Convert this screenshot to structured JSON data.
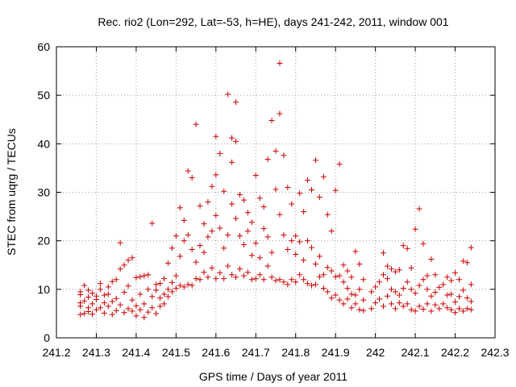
{
  "chart_data": {
    "type": "scatter",
    "title": "Rec. rio2 (Lon=292, Lat=-53, h=HE), days 241-242, 2011, window 001",
    "xlabel": "GPS time / Days of year 2011",
    "ylabel": "STEC from uqrg / TECUs",
    "xlim": [
      241.2,
      242.3
    ],
    "ylim": [
      0,
      60
    ],
    "x_ticks": [
      241.2,
      241.3,
      241.4,
      241.5,
      241.6,
      241.7,
      241.8,
      241.9,
      242.0,
      242.1,
      242.2,
      242.3
    ],
    "x_tick_labels": [
      "241.2",
      "241.3",
      "241.4",
      "241.5",
      "241.6",
      "241.7",
      "241.8",
      "241.9",
      "242",
      "242.1",
      "242.2",
      "242.3"
    ],
    "y_ticks": [
      0,
      10,
      20,
      30,
      40,
      50,
      60
    ],
    "y_tick_labels": [
      "0",
      "10",
      "20",
      "30",
      "40",
      "50",
      "60"
    ],
    "grid": true,
    "marker": "+",
    "color": "#cc0000",
    "series": [
      {
        "points": [
          [
            241.26,
            4.8
          ],
          [
            241.26,
            6.5
          ],
          [
            241.26,
            7.2
          ],
          [
            241.26,
            8.9
          ],
          [
            241.26,
            9.5
          ],
          [
            241.27,
            5.0
          ],
          [
            241.27,
            7.6
          ],
          [
            241.27,
            10.8
          ],
          [
            241.28,
            5.4
          ],
          [
            241.28,
            6.2
          ],
          [
            241.28,
            8.4
          ],
          [
            241.28,
            9.8
          ],
          [
            241.29,
            4.9
          ],
          [
            241.29,
            7.0
          ],
          [
            241.29,
            9.2
          ],
          [
            241.3,
            5.8
          ],
          [
            241.3,
            7.9
          ],
          [
            241.3,
            8.6
          ],
          [
            241.31,
            6.2
          ],
          [
            241.31,
            10.0
          ],
          [
            241.31,
            11.2
          ],
          [
            241.32,
            5.1
          ],
          [
            241.32,
            7.2
          ],
          [
            241.32,
            8.8
          ],
          [
            241.33,
            6.5
          ],
          [
            241.33,
            9.0
          ],
          [
            241.33,
            10.5
          ],
          [
            241.34,
            4.8
          ],
          [
            241.34,
            7.5
          ],
          [
            241.34,
            11.6
          ],
          [
            241.35,
            5.6
          ],
          [
            241.35,
            8.1
          ],
          [
            241.35,
            12.0
          ],
          [
            241.36,
            6.8
          ],
          [
            241.36,
            14.2
          ],
          [
            241.36,
            19.6
          ],
          [
            241.37,
            5.2
          ],
          [
            241.37,
            9.4
          ],
          [
            241.37,
            15.0
          ],
          [
            241.38,
            6.0
          ],
          [
            241.38,
            10.7
          ],
          [
            241.38,
            16.0
          ],
          [
            241.39,
            5.5
          ],
          [
            241.39,
            7.8
          ],
          [
            241.39,
            16.5
          ],
          [
            241.4,
            4.5
          ],
          [
            241.4,
            6.6
          ],
          [
            241.4,
            12.4
          ],
          [
            241.41,
            5.8
          ],
          [
            241.41,
            9.0
          ],
          [
            241.41,
            12.6
          ],
          [
            241.42,
            4.2
          ],
          [
            241.42,
            7.0
          ],
          [
            241.42,
            12.8
          ],
          [
            241.43,
            5.3
          ],
          [
            241.43,
            10.0
          ],
          [
            241.43,
            13.0
          ],
          [
            241.44,
            6.2
          ],
          [
            241.44,
            8.5
          ],
          [
            241.44,
            23.6
          ],
          [
            241.45,
            5.0
          ],
          [
            241.45,
            9.8
          ],
          [
            241.45,
            11.0
          ],
          [
            241.46,
            6.5
          ],
          [
            241.46,
            8.2
          ],
          [
            241.46,
            11.2
          ],
          [
            241.47,
            7.0
          ],
          [
            241.47,
            9.0
          ],
          [
            241.47,
            12.2
          ],
          [
            241.48,
            8.5
          ],
          [
            241.48,
            10.0
          ],
          [
            241.48,
            15.4
          ],
          [
            241.49,
            9.5
          ],
          [
            241.49,
            11.4
          ],
          [
            241.49,
            18.5
          ],
          [
            241.5,
            10.2
          ],
          [
            241.5,
            12.8
          ],
          [
            241.5,
            21.0
          ],
          [
            241.51,
            10.8
          ],
          [
            241.51,
            16.8
          ],
          [
            241.51,
            26.8
          ],
          [
            241.52,
            10.5
          ],
          [
            241.52,
            20.0
          ],
          [
            241.52,
            24.2
          ],
          [
            241.53,
            11.0
          ],
          [
            241.53,
            21.2
          ],
          [
            241.53,
            34.4
          ],
          [
            241.54,
            10.8
          ],
          [
            241.54,
            18.2
          ],
          [
            241.54,
            33.0
          ],
          [
            241.55,
            12.2
          ],
          [
            241.55,
            15.6
          ],
          [
            241.55,
            44.0
          ],
          [
            241.56,
            12.0
          ],
          [
            241.56,
            19.0
          ],
          [
            241.56,
            27.2
          ],
          [
            241.57,
            13.5
          ],
          [
            241.57,
            17.6
          ],
          [
            241.57,
            23.5
          ],
          [
            241.58,
            12.5
          ],
          [
            241.58,
            20.8
          ],
          [
            241.58,
            28.0
          ],
          [
            241.59,
            14.4
          ],
          [
            241.59,
            22.0
          ],
          [
            241.59,
            31.2
          ],
          [
            241.6,
            12.2
          ],
          [
            241.6,
            25.2
          ],
          [
            241.6,
            33.6
          ],
          [
            241.6,
            41.5
          ],
          [
            241.61,
            13.4
          ],
          [
            241.61,
            22.6
          ],
          [
            241.61,
            38.0
          ],
          [
            241.62,
            12.2
          ],
          [
            241.62,
            18.5
          ],
          [
            241.62,
            30.2
          ],
          [
            241.63,
            14.8
          ],
          [
            241.63,
            21.2
          ],
          [
            241.63,
            50.2
          ],
          [
            241.64,
            13.0
          ],
          [
            241.64,
            27.6
          ],
          [
            241.64,
            36.2
          ],
          [
            241.64,
            41.2
          ],
          [
            241.65,
            12.5
          ],
          [
            241.65,
            24.6
          ],
          [
            241.65,
            40.5
          ],
          [
            241.65,
            48.6
          ],
          [
            241.66,
            14.2
          ],
          [
            241.66,
            21.0
          ],
          [
            241.66,
            29.5
          ],
          [
            241.67,
            12.8
          ],
          [
            241.67,
            19.2
          ],
          [
            241.67,
            28.4
          ],
          [
            241.68,
            13.5
          ],
          [
            241.68,
            22.0
          ],
          [
            241.68,
            25.8
          ],
          [
            241.69,
            12.0
          ],
          [
            241.69,
            17.0
          ],
          [
            241.69,
            23.8
          ],
          [
            241.7,
            12.2
          ],
          [
            241.7,
            19.5
          ],
          [
            241.7,
            33.5
          ],
          [
            241.71,
            13.0
          ],
          [
            241.71,
            16.5
          ],
          [
            241.71,
            28.8
          ],
          [
            241.72,
            12.0
          ],
          [
            241.72,
            22.5
          ],
          [
            241.72,
            27.0
          ],
          [
            241.73,
            14.8
          ],
          [
            241.73,
            20.8
          ],
          [
            241.73,
            36.8
          ],
          [
            241.74,
            12.5
          ],
          [
            241.74,
            17.6
          ],
          [
            241.74,
            44.8
          ],
          [
            241.75,
            11.8
          ],
          [
            241.75,
            30.6
          ],
          [
            241.75,
            38.5
          ],
          [
            241.76,
            12.0
          ],
          [
            241.76,
            25.4
          ],
          [
            241.76,
            46.2
          ],
          [
            241.76,
            56.6
          ],
          [
            241.77,
            11.5
          ],
          [
            241.77,
            21.2
          ],
          [
            241.77,
            37.6
          ],
          [
            241.78,
            11.0
          ],
          [
            241.78,
            18.2
          ],
          [
            241.78,
            31.0
          ],
          [
            241.79,
            12.0
          ],
          [
            241.79,
            20.0
          ],
          [
            241.79,
            27.6
          ],
          [
            241.8,
            11.5
          ],
          [
            241.8,
            17.2
          ],
          [
            241.8,
            21.0
          ],
          [
            241.81,
            13.0
          ],
          [
            241.81,
            19.8
          ],
          [
            241.81,
            29.8
          ],
          [
            241.82,
            12.0
          ],
          [
            241.82,
            16.0
          ],
          [
            241.82,
            26.0
          ],
          [
            241.83,
            11.2
          ],
          [
            241.83,
            20.0
          ],
          [
            241.83,
            32.5
          ],
          [
            241.84,
            10.8
          ],
          [
            241.84,
            18.6
          ],
          [
            241.84,
            30.5
          ],
          [
            241.85,
            11.0
          ],
          [
            241.85,
            15.2
          ],
          [
            241.85,
            36.6
          ],
          [
            241.86,
            12.6
          ],
          [
            241.86,
            16.8
          ],
          [
            241.86,
            29.0
          ],
          [
            241.87,
            10.2
          ],
          [
            241.87,
            13.0
          ],
          [
            241.87,
            33.2
          ],
          [
            241.88,
            9.5
          ],
          [
            241.88,
            14.5
          ],
          [
            241.88,
            25.4
          ],
          [
            241.89,
            8.2
          ],
          [
            241.89,
            13.8
          ],
          [
            241.89,
            22.0
          ],
          [
            241.9,
            8.8
          ],
          [
            241.9,
            12.6
          ],
          [
            241.9,
            30.4
          ],
          [
            241.91,
            7.8
          ],
          [
            241.91,
            12.8
          ],
          [
            241.91,
            35.8
          ],
          [
            241.92,
            7.0
          ],
          [
            241.92,
            11.5
          ],
          [
            241.92,
            15.0
          ],
          [
            241.93,
            8.0
          ],
          [
            241.93,
            10.2
          ],
          [
            241.93,
            13.8
          ],
          [
            241.94,
            6.2
          ],
          [
            241.94,
            9.0
          ],
          [
            241.94,
            12.5
          ],
          [
            241.95,
            7.0
          ],
          [
            241.95,
            8.8
          ],
          [
            241.95,
            17.8
          ],
          [
            241.96,
            5.8
          ],
          [
            241.96,
            10.0
          ],
          [
            241.96,
            15.2
          ],
          [
            241.97,
            5.6
          ],
          [
            241.97,
            7.8
          ],
          [
            241.97,
            12.0
          ],
          [
            241.99,
            6.0
          ],
          [
            241.99,
            9.5
          ],
          [
            242.0,
            7.2
          ],
          [
            242.0,
            10.5
          ],
          [
            242.01,
            8.0
          ],
          [
            242.01,
            11.5
          ],
          [
            242.02,
            6.5
          ],
          [
            242.02,
            13.0
          ],
          [
            242.02,
            17.5
          ],
          [
            242.03,
            8.6
          ],
          [
            242.03,
            12.2
          ],
          [
            242.03,
            14.8
          ],
          [
            242.04,
            7.0
          ],
          [
            242.04,
            10.0
          ],
          [
            242.04,
            14.2
          ],
          [
            242.05,
            6.0
          ],
          [
            242.05,
            9.5
          ],
          [
            242.05,
            13.6
          ],
          [
            242.06,
            7.2
          ],
          [
            242.06,
            8.8
          ],
          [
            242.06,
            14.0
          ],
          [
            242.07,
            6.5
          ],
          [
            242.07,
            10.2
          ],
          [
            242.07,
            19.0
          ],
          [
            242.08,
            7.0
          ],
          [
            242.08,
            11.5
          ],
          [
            242.08,
            18.4
          ],
          [
            242.09,
            5.8
          ],
          [
            242.09,
            10.0
          ],
          [
            242.09,
            14.4
          ],
          [
            242.1,
            5.5
          ],
          [
            242.1,
            9.2
          ],
          [
            242.1,
            22.4
          ],
          [
            242.11,
            6.5
          ],
          [
            242.11,
            10.8
          ],
          [
            242.11,
            26.6
          ],
          [
            242.12,
            5.9
          ],
          [
            242.12,
            12.0
          ],
          [
            242.12,
            19.4
          ],
          [
            242.13,
            7.0
          ],
          [
            242.13,
            10.0
          ],
          [
            242.13,
            12.8
          ],
          [
            242.14,
            5.5
          ],
          [
            242.14,
            8.6
          ],
          [
            242.14,
            16.2
          ],
          [
            242.15,
            6.8
          ],
          [
            242.15,
            9.4
          ],
          [
            242.15,
            13.0
          ],
          [
            242.16,
            6.0
          ],
          [
            242.16,
            10.4
          ],
          [
            242.17,
            7.0
          ],
          [
            242.17,
            11.0
          ],
          [
            242.18,
            6.2
          ],
          [
            242.18,
            8.8
          ],
          [
            242.18,
            12.5
          ],
          [
            242.19,
            5.8
          ],
          [
            242.19,
            9.0
          ],
          [
            242.19,
            11.8
          ],
          [
            242.2,
            5.2
          ],
          [
            242.2,
            7.4
          ],
          [
            242.2,
            13.4
          ],
          [
            242.21,
            6.0
          ],
          [
            242.21,
            8.5
          ],
          [
            242.21,
            12.0
          ],
          [
            242.22,
            5.5
          ],
          [
            242.22,
            9.8
          ],
          [
            242.22,
            15.8
          ],
          [
            242.23,
            6.0
          ],
          [
            242.23,
            8.2
          ],
          [
            242.23,
            15.5
          ],
          [
            242.24,
            5.8
          ],
          [
            242.24,
            7.5
          ],
          [
            242.24,
            11.0
          ],
          [
            242.24,
            18.6
          ]
        ]
      }
    ]
  }
}
